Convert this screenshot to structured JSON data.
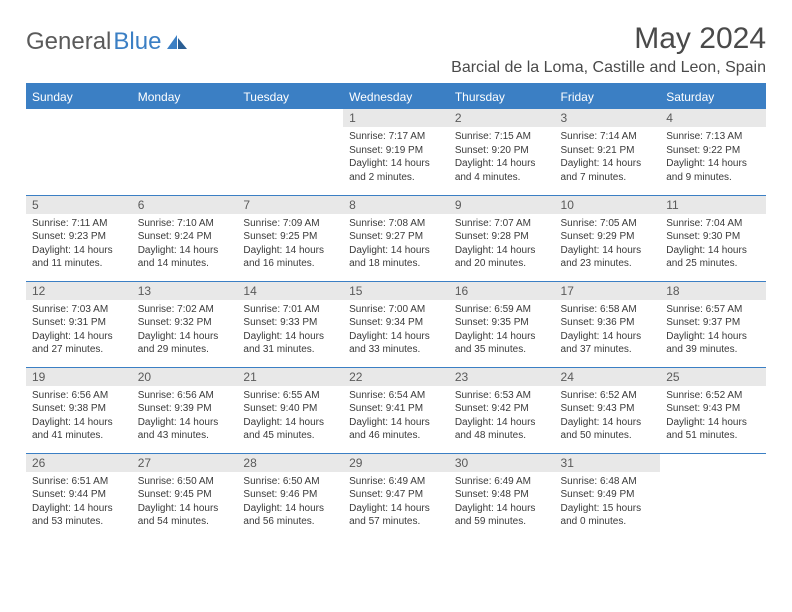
{
  "brand": {
    "part1": "General",
    "part2": "Blue"
  },
  "title": "May 2024",
  "location": "Barcial de la Loma, Castille and Leon, Spain",
  "colors": {
    "accent": "#3b7fc4",
    "daybg": "#e8e8e8",
    "text": "#3a3a3a",
    "header_text": "#ffffff",
    "background": "#ffffff"
  },
  "day_names": [
    "Sunday",
    "Monday",
    "Tuesday",
    "Wednesday",
    "Thursday",
    "Friday",
    "Saturday"
  ],
  "weeks": [
    [
      null,
      null,
      null,
      {
        "n": "1",
        "sr": "7:17 AM",
        "ss": "9:19 PM",
        "dl": "14 hours and 2 minutes."
      },
      {
        "n": "2",
        "sr": "7:15 AM",
        "ss": "9:20 PM",
        "dl": "14 hours and 4 minutes."
      },
      {
        "n": "3",
        "sr": "7:14 AM",
        "ss": "9:21 PM",
        "dl": "14 hours and 7 minutes."
      },
      {
        "n": "4",
        "sr": "7:13 AM",
        "ss": "9:22 PM",
        "dl": "14 hours and 9 minutes."
      }
    ],
    [
      {
        "n": "5",
        "sr": "7:11 AM",
        "ss": "9:23 PM",
        "dl": "14 hours and 11 minutes."
      },
      {
        "n": "6",
        "sr": "7:10 AM",
        "ss": "9:24 PM",
        "dl": "14 hours and 14 minutes."
      },
      {
        "n": "7",
        "sr": "7:09 AM",
        "ss": "9:25 PM",
        "dl": "14 hours and 16 minutes."
      },
      {
        "n": "8",
        "sr": "7:08 AM",
        "ss": "9:27 PM",
        "dl": "14 hours and 18 minutes."
      },
      {
        "n": "9",
        "sr": "7:07 AM",
        "ss": "9:28 PM",
        "dl": "14 hours and 20 minutes."
      },
      {
        "n": "10",
        "sr": "7:05 AM",
        "ss": "9:29 PM",
        "dl": "14 hours and 23 minutes."
      },
      {
        "n": "11",
        "sr": "7:04 AM",
        "ss": "9:30 PM",
        "dl": "14 hours and 25 minutes."
      }
    ],
    [
      {
        "n": "12",
        "sr": "7:03 AM",
        "ss": "9:31 PM",
        "dl": "14 hours and 27 minutes."
      },
      {
        "n": "13",
        "sr": "7:02 AM",
        "ss": "9:32 PM",
        "dl": "14 hours and 29 minutes."
      },
      {
        "n": "14",
        "sr": "7:01 AM",
        "ss": "9:33 PM",
        "dl": "14 hours and 31 minutes."
      },
      {
        "n": "15",
        "sr": "7:00 AM",
        "ss": "9:34 PM",
        "dl": "14 hours and 33 minutes."
      },
      {
        "n": "16",
        "sr": "6:59 AM",
        "ss": "9:35 PM",
        "dl": "14 hours and 35 minutes."
      },
      {
        "n": "17",
        "sr": "6:58 AM",
        "ss": "9:36 PM",
        "dl": "14 hours and 37 minutes."
      },
      {
        "n": "18",
        "sr": "6:57 AM",
        "ss": "9:37 PM",
        "dl": "14 hours and 39 minutes."
      }
    ],
    [
      {
        "n": "19",
        "sr": "6:56 AM",
        "ss": "9:38 PM",
        "dl": "14 hours and 41 minutes."
      },
      {
        "n": "20",
        "sr": "6:56 AM",
        "ss": "9:39 PM",
        "dl": "14 hours and 43 minutes."
      },
      {
        "n": "21",
        "sr": "6:55 AM",
        "ss": "9:40 PM",
        "dl": "14 hours and 45 minutes."
      },
      {
        "n": "22",
        "sr": "6:54 AM",
        "ss": "9:41 PM",
        "dl": "14 hours and 46 minutes."
      },
      {
        "n": "23",
        "sr": "6:53 AM",
        "ss": "9:42 PM",
        "dl": "14 hours and 48 minutes."
      },
      {
        "n": "24",
        "sr": "6:52 AM",
        "ss": "9:43 PM",
        "dl": "14 hours and 50 minutes."
      },
      {
        "n": "25",
        "sr": "6:52 AM",
        "ss": "9:43 PM",
        "dl": "14 hours and 51 minutes."
      }
    ],
    [
      {
        "n": "26",
        "sr": "6:51 AM",
        "ss": "9:44 PM",
        "dl": "14 hours and 53 minutes."
      },
      {
        "n": "27",
        "sr": "6:50 AM",
        "ss": "9:45 PM",
        "dl": "14 hours and 54 minutes."
      },
      {
        "n": "28",
        "sr": "6:50 AM",
        "ss": "9:46 PM",
        "dl": "14 hours and 56 minutes."
      },
      {
        "n": "29",
        "sr": "6:49 AM",
        "ss": "9:47 PM",
        "dl": "14 hours and 57 minutes."
      },
      {
        "n": "30",
        "sr": "6:49 AM",
        "ss": "9:48 PM",
        "dl": "14 hours and 59 minutes."
      },
      {
        "n": "31",
        "sr": "6:48 AM",
        "ss": "9:49 PM",
        "dl": "15 hours and 0 minutes."
      },
      null
    ]
  ],
  "labels": {
    "sunrise": "Sunrise:",
    "sunset": "Sunset:",
    "daylight": "Daylight:"
  }
}
